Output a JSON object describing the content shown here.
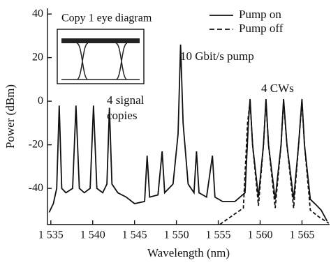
{
  "chart_data": {
    "type": "line",
    "xlabel": "Wavelength (nm)",
    "ylabel": "Power (dBm)",
    "xlim": [
      1534.6,
      1568.3
    ],
    "ylim": [
      -56.6,
      42.6
    ],
    "xticks": [
      {
        "value": 1535,
        "label": "1 535"
      },
      {
        "value": 1540,
        "label": "1 540"
      },
      {
        "value": 1545,
        "label": "1 545"
      },
      {
        "value": 1550,
        "label": "1 550"
      },
      {
        "value": 1555,
        "label": "1 555"
      },
      {
        "value": 1560,
        "label": "1 560"
      },
      {
        "value": 1565,
        "label": "1 565"
      }
    ],
    "yticks": [
      -40,
      -20,
      0,
      20,
      40
    ],
    "legend": "upper right",
    "inset_title": "Copy 1 eye diagram",
    "annotations": [
      "10 Gbit/s pump",
      "4 signal",
      "copies",
      "4 CWs"
    ],
    "series": [
      {
        "name": "Pump on",
        "color": "#111111",
        "linestyle": "solid",
        "x": [
          1534.8,
          1535.3,
          1535.7,
          1536.0,
          1536.3,
          1536.8,
          1537.6,
          1538.0,
          1538.4,
          1539.0,
          1539.7,
          1540.1,
          1540.5,
          1541.2,
          1541.7,
          1542.0,
          1542.3,
          1543.0,
          1544.0,
          1545.0,
          1546.2,
          1546.5,
          1546.8,
          1547.8,
          1548.3,
          1548.6,
          1549.6,
          1550.2,
          1550.5,
          1550.8,
          1551.4,
          1552.1,
          1552.4,
          1552.7,
          1553.6,
          1554.3,
          1554.6,
          1555.5,
          1557.0,
          1558.2,
          1558.6,
          1558.8,
          1559.1,
          1559.8,
          1560.4,
          1560.7,
          1561.0,
          1561.8,
          1562.5,
          1562.8,
          1563.2,
          1564.0,
          1564.6,
          1565.0,
          1565.3,
          1566.0,
          1566.8,
          1567.3,
          1568.0
        ],
        "values": [
          -51,
          -47,
          -40,
          -2,
          -40,
          -42,
          -40,
          -2,
          -40,
          -42,
          -40,
          -2,
          -40,
          -42,
          -38,
          -3,
          -38,
          -42,
          -44,
          -47,
          -46,
          -25,
          -44,
          -43,
          -23,
          -42,
          -38,
          -15,
          26,
          -10,
          -38,
          -42,
          -23,
          -42,
          -44,
          -25,
          -44,
          -46,
          -46,
          -42,
          -10,
          1,
          -20,
          -44,
          -20,
          1,
          -20,
          -45,
          -20,
          1,
          -20,
          -45,
          -20,
          1,
          -20,
          -45,
          -48,
          -50,
          -55
        ]
      },
      {
        "name": "Pump off",
        "color": "#111111",
        "linestyle": "dashed",
        "x": [
          1555.2,
          1556.5,
          1558.0,
          1558.5,
          1558.8,
          1559.1,
          1559.8,
          1560.4,
          1560.7,
          1561.0,
          1561.8,
          1562.5,
          1562.8,
          1563.2,
          1564.0,
          1564.6,
          1565.0,
          1565.3,
          1566.0,
          1567.0,
          1568.2
        ],
        "values": [
          -56.5,
          -53,
          -49,
          -10,
          0,
          -20,
          -48,
          -20,
          0,
          -20,
          -49,
          -20,
          0,
          -20,
          -49,
          -20,
          0,
          -20,
          -50,
          -53,
          -56
        ]
      }
    ]
  }
}
